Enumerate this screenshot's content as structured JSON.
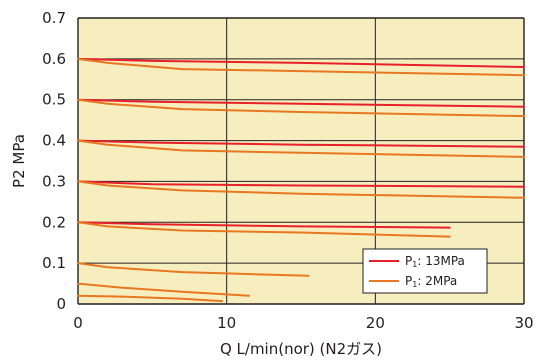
{
  "chart_data": {
    "type": "line",
    "title": "",
    "xlabel": "Q L/min(nor) (N2ガス)",
    "ylabel": "P2 MPa",
    "xlim": [
      0,
      30
    ],
    "ylim": [
      0,
      0.7
    ],
    "x_ticks": [
      "0",
      "10",
      "20",
      "30"
    ],
    "y_ticks": [
      "0",
      "0.1",
      "0.2",
      "0.3",
      "0.4",
      "0.5",
      "0.6",
      "0.7"
    ],
    "grid": true,
    "legend_position": "bottom-right",
    "colors": {
      "plot_background": "#f7eec0",
      "grid": "#231f20",
      "p1_13mpa": "#e8202a",
      "p1_2mpa": "#e87722"
    },
    "series": [
      {
        "name": "P1: 13MPa",
        "color": "#e8202a",
        "points": [
          [
            0,
            0.6
          ],
          [
            5,
            0.595
          ],
          [
            15,
            0.59
          ],
          [
            30,
            0.58
          ]
        ]
      },
      {
        "name": "P1: 2MPa",
        "color": "#e87722",
        "points": [
          [
            0,
            0.6
          ],
          [
            2,
            0.59
          ],
          [
            7,
            0.575
          ],
          [
            15,
            0.57
          ],
          [
            30,
            0.56
          ]
        ]
      },
      {
        "name": "P1: 13MPa",
        "color": "#e8202a",
        "points": [
          [
            0,
            0.5
          ],
          [
            5,
            0.495
          ],
          [
            15,
            0.49
          ],
          [
            30,
            0.483
          ]
        ]
      },
      {
        "name": "P1: 2MPa",
        "color": "#e87722",
        "points": [
          [
            0,
            0.5
          ],
          [
            2,
            0.49
          ],
          [
            7,
            0.477
          ],
          [
            15,
            0.47
          ],
          [
            30,
            0.46
          ]
        ]
      },
      {
        "name": "P1: 13MPa",
        "color": "#e8202a",
        "points": [
          [
            0,
            0.4
          ],
          [
            5,
            0.395
          ],
          [
            15,
            0.39
          ],
          [
            30,
            0.385
          ]
        ]
      },
      {
        "name": "P1: 2MPa",
        "color": "#e87722",
        "points": [
          [
            0,
            0.4
          ],
          [
            2,
            0.39
          ],
          [
            7,
            0.376
          ],
          [
            15,
            0.37
          ],
          [
            30,
            0.36
          ]
        ]
      },
      {
        "name": "P1: 13MPa",
        "color": "#e8202a",
        "points": [
          [
            0,
            0.3
          ],
          [
            5,
            0.293
          ],
          [
            15,
            0.29
          ],
          [
            30,
            0.287
          ]
        ]
      },
      {
        "name": "P1: 2MPa",
        "color": "#e87722",
        "points": [
          [
            0,
            0.3
          ],
          [
            2,
            0.29
          ],
          [
            7,
            0.278
          ],
          [
            15,
            0.27
          ],
          [
            30,
            0.26
          ]
        ]
      },
      {
        "name": "P1: 13MPa",
        "color": "#e8202a",
        "points": [
          [
            0,
            0.2
          ],
          [
            5,
            0.195
          ],
          [
            15,
            0.19
          ],
          [
            25,
            0.187
          ]
        ]
      },
      {
        "name": "P1: 2MPa",
        "color": "#e87722",
        "points": [
          [
            0,
            0.2
          ],
          [
            2,
            0.19
          ],
          [
            7,
            0.18
          ],
          [
            15,
            0.175
          ],
          [
            25,
            0.165
          ]
        ]
      },
      {
        "name": "P1: 2MPa",
        "color": "#e87722",
        "points": [
          [
            0,
            0.1
          ],
          [
            2,
            0.09
          ],
          [
            7,
            0.078
          ],
          [
            10,
            0.075
          ],
          [
            15.5,
            0.069
          ]
        ]
      },
      {
        "name": "P1: 2MPa",
        "color": "#e87722",
        "points": [
          [
            0,
            0.05
          ],
          [
            3,
            0.04
          ],
          [
            7,
            0.03
          ],
          [
            11.5,
            0.02
          ]
        ]
      },
      {
        "name": "P1: 2MPa",
        "color": "#e87722",
        "points": [
          [
            0,
            0.02
          ],
          [
            3,
            0.018
          ],
          [
            7,
            0.013
          ],
          [
            9.7,
            0.007
          ]
        ]
      }
    ],
    "legend": [
      {
        "prefix": "P",
        "sub": "1",
        "suffix": ": 13MPa",
        "color": "#e8202a"
      },
      {
        "prefix": "P",
        "sub": "1",
        "suffix": ": 2MPa",
        "color": "#e87722"
      }
    ]
  }
}
